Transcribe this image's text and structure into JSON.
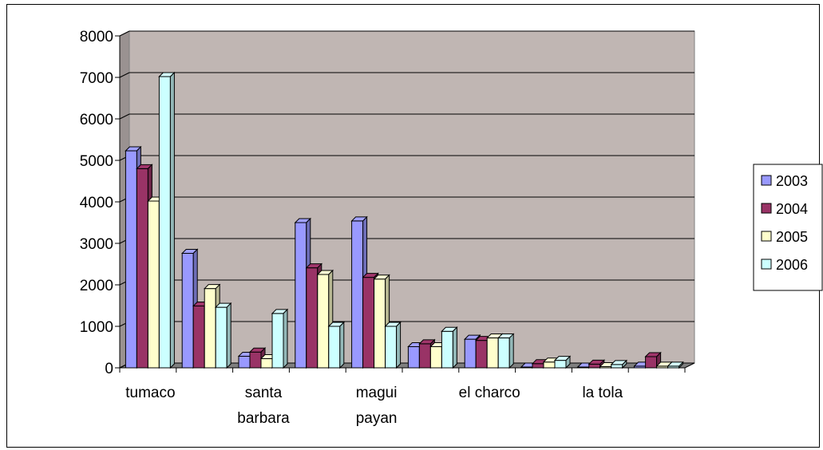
{
  "chart_data": {
    "type": "bar",
    "title": "",
    "xlabel": "",
    "ylabel": "",
    "ylim": [
      0,
      8000
    ],
    "yticks": [
      0,
      1000,
      2000,
      3000,
      4000,
      5000,
      6000,
      7000,
      8000
    ],
    "categories": [
      "tumaco",
      "",
      "santa barbara",
      "",
      "magui payan",
      "",
      "el charco",
      "",
      "la tola",
      ""
    ],
    "series": [
      {
        "name": "2003",
        "color": "#9999ff",
        "values": [
          5230,
          2760,
          280,
          3500,
          3540,
          510,
          690,
          20,
          20,
          40
        ]
      },
      {
        "name": "2004",
        "color": "#993366",
        "values": [
          4800,
          1490,
          380,
          2410,
          2180,
          580,
          660,
          100,
          90,
          270
        ]
      },
      {
        "name": "2005",
        "color": "#ffffcc",
        "values": [
          4020,
          1910,
          220,
          2250,
          2140,
          510,
          720,
          140,
          30,
          40
        ]
      },
      {
        "name": "2006",
        "color": "#ccffff",
        "values": [
          7020,
          1460,
          1310,
          1000,
          1000,
          880,
          720,
          180,
          80,
          40
        ]
      }
    ],
    "grid": true,
    "legend": "right"
  }
}
